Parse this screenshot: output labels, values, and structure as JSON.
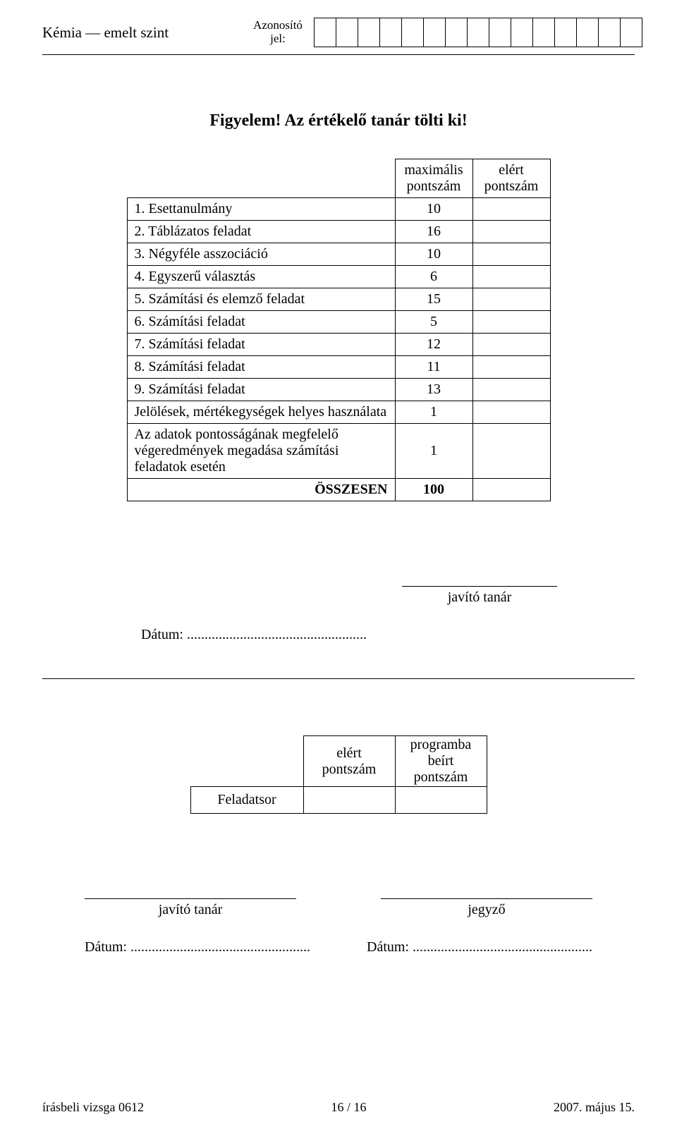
{
  "header": {
    "subject": "Kémia — emelt szint",
    "id_label_line1": "Azonosító",
    "id_label_line2": "jel:",
    "id_box_count": 15
  },
  "title": "Figyelem! Az értékelő tanár tölti ki!",
  "score_table": {
    "col_max_line1": "maximális",
    "col_max_line2": "pontszám",
    "col_got_line1": "elért",
    "col_got_line2": "pontszám",
    "rows": [
      {
        "label": "1. Esettanulmány",
        "max": "10"
      },
      {
        "label": "2. Táblázatos feladat",
        "max": "16"
      },
      {
        "label": "3. Négyféle asszociáció",
        "max": "10"
      },
      {
        "label": "4. Egyszerű választás",
        "max": "6"
      },
      {
        "label": "5. Számítási és elemző feladat",
        "max": "15"
      },
      {
        "label": "6. Számítási feladat",
        "max": "5"
      },
      {
        "label": "7. Számítási feladat",
        "max": "12"
      },
      {
        "label": "8. Számítási feladat",
        "max": "11"
      },
      {
        "label": "9. Számítási feladat",
        "max": "13"
      },
      {
        "label": "Jelölések, mértékegységek helyes használata",
        "max": "1"
      },
      {
        "label": "Az adatok pontosságának megfelelő végeredmények megadása számítási feladatok esetén",
        "max": "1"
      }
    ],
    "total_label": "ÖSSZESEN",
    "total_max": "100"
  },
  "signatures": {
    "teacher": "javító tanár",
    "clerk": "jegyző",
    "date_label": "Dátum:",
    "date_dots": "..................................................."
  },
  "mini": {
    "row_label": "Feladatsor",
    "col1_line1": "elért",
    "col1_line2": "pontszám",
    "col2_line1": "programba",
    "col2_line2": "beírt",
    "col2_line3": "pontszám"
  },
  "footer": {
    "left": "írásbeli vizsga 0612",
    "center": "16 / 16",
    "right": "2007. május 15."
  }
}
